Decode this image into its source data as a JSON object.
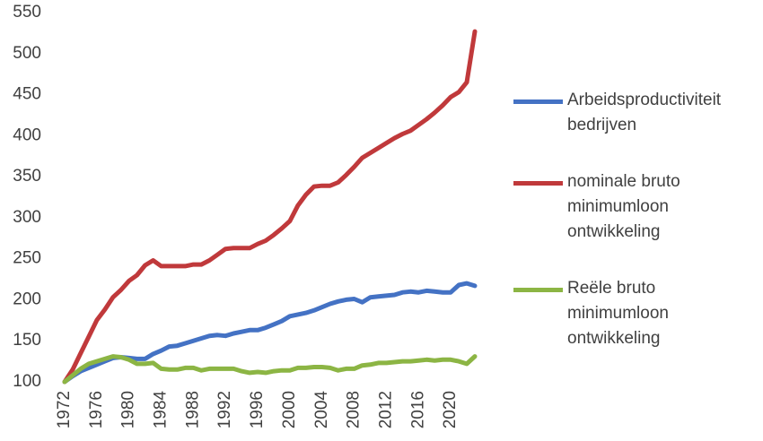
{
  "chart_data": {
    "type": "line",
    "x": [
      1972,
      1973,
      1974,
      1975,
      1976,
      1977,
      1978,
      1979,
      1980,
      1981,
      1982,
      1983,
      1984,
      1985,
      1986,
      1987,
      1988,
      1989,
      1990,
      1991,
      1992,
      1993,
      1994,
      1995,
      1996,
      1997,
      1998,
      1999,
      2000,
      2001,
      2002,
      2003,
      2004,
      2005,
      2006,
      2007,
      2008,
      2009,
      2010,
      2011,
      2012,
      2013,
      2014,
      2015,
      2016,
      2017,
      2018,
      2019,
      2020,
      2021,
      2022,
      2023
    ],
    "xlim": [
      1972,
      2023
    ],
    "xticks": [
      1972,
      1976,
      1980,
      1984,
      1988,
      1992,
      1996,
      2000,
      2004,
      2008,
      2012,
      2016,
      2020
    ],
    "ylim": [
      100,
      550
    ],
    "yticks": [
      100,
      150,
      200,
      250,
      300,
      350,
      400,
      450,
      500,
      550
    ],
    "grid": false,
    "legend": "right",
    "series": [
      {
        "name": "Arbeidsproductiviteit bedrijven",
        "color": "#4472c4",
        "values": [
          100,
          107,
          113,
          117,
          121,
          125,
          129,
          130,
          129,
          128,
          128,
          134,
          138,
          143,
          144,
          147,
          150,
          153,
          156,
          157,
          156,
          159,
          161,
          163,
          163,
          166,
          170,
          174,
          180,
          182,
          184,
          187,
          191,
          195,
          198,
          200,
          201,
          197,
          203,
          204,
          205,
          206,
          209,
          210,
          209,
          211,
          210,
          209,
          209,
          218,
          220,
          217
        ]
      },
      {
        "name": "nominale bruto minimumloon ontwikkeling",
        "color": "#c0393b",
        "values": [
          100,
          115,
          135,
          155,
          175,
          188,
          203,
          212,
          223,
          230,
          242,
          248,
          241,
          241,
          241,
          241,
          243,
          243,
          248,
          255,
          262,
          263,
          263,
          263,
          268,
          272,
          279,
          287,
          296,
          315,
          328,
          338,
          339,
          339,
          343,
          352,
          362,
          373,
          379,
          385,
          391,
          397,
          402,
          406,
          413,
          420,
          428,
          437,
          447,
          453,
          465,
          527
        ]
      },
      {
        "name": "Reële bruto minimumloon ontwikkeling",
        "color": "#8cb544",
        "values": [
          100,
          108,
          116,
          122,
          125,
          128,
          131,
          130,
          127,
          122,
          122,
          123,
          116,
          115,
          115,
          117,
          117,
          114,
          116,
          116,
          116,
          116,
          113,
          111,
          112,
          111,
          113,
          114,
          114,
          117,
          117,
          118,
          118,
          117,
          114,
          116,
          116,
          120,
          121,
          123,
          123,
          124,
          125,
          125,
          126,
          127,
          126,
          127,
          127,
          125,
          122,
          131
        ]
      }
    ]
  }
}
